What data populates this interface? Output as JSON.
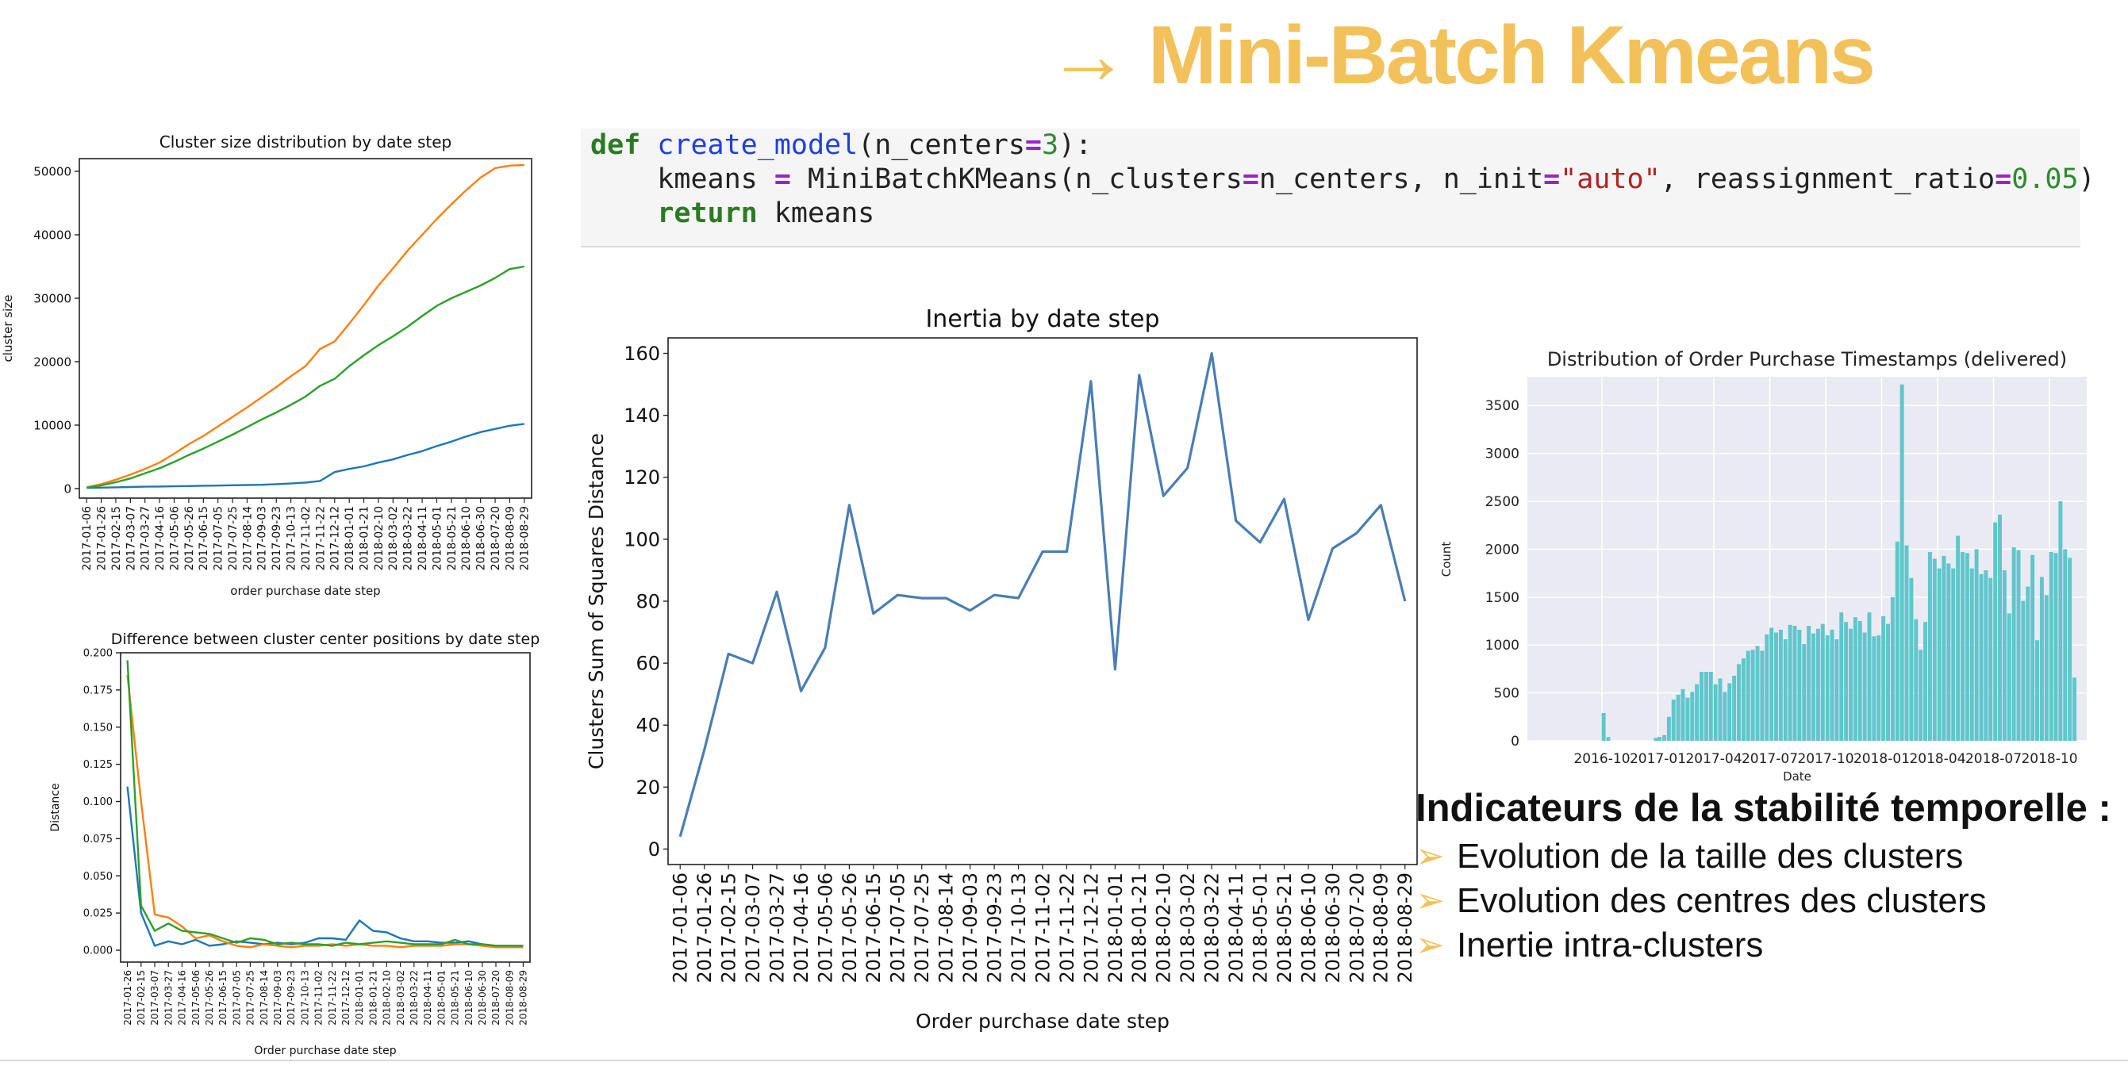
{
  "slide": {
    "title": "→ Mini-Batch Kmeans",
    "code": {
      "line1": {
        "kw": "def",
        "fn": "create_model",
        "a": "(n_centers",
        "op": "=",
        "num": "3",
        "b": "):"
      },
      "line2": {
        "a": "kmeans ",
        "op1": "=",
        "b": " MiniBatchKMeans(n_clusters",
        "op2": "=",
        "c": "n_centers, n_init",
        "op3": "=",
        "str": "\"auto\"",
        "d": ", reassignment_ratio",
        "op4": "=",
        "num": "0.05",
        "e": ")"
      },
      "line3": {
        "kw": "return",
        "a": " kmeans"
      }
    },
    "indicators": {
      "title": "Indicateurs de la stabilité temporelle :",
      "items": [
        "Evolution de la taille des clusters",
        "Evolution des centres des clusters",
        "Inertie intra-clusters"
      ]
    }
  },
  "chart_data": [
    {
      "type": "line",
      "title": "Cluster size distribution by date step",
      "xlabel": "order purchase date step",
      "ylabel": "cluster size",
      "ylim": [
        -1500,
        52000
      ],
      "yticks": [
        0,
        10000,
        20000,
        30000,
        40000,
        50000
      ],
      "x": [
        "2017-01-06",
        "2017-01-26",
        "2017-02-15",
        "2017-03-07",
        "2017-03-27",
        "2017-04-16",
        "2017-05-06",
        "2017-05-26",
        "2017-06-15",
        "2017-07-05",
        "2017-07-25",
        "2017-08-14",
        "2017-09-03",
        "2017-09-23",
        "2017-10-13",
        "2017-11-02",
        "2017-11-22",
        "2017-12-12",
        "2018-01-01",
        "2018-01-21",
        "2018-02-10",
        "2018-03-02",
        "2018-03-22",
        "2018-04-11",
        "2018-05-01",
        "2018-05-21",
        "2018-06-10",
        "2018-06-30",
        "2018-07-20",
        "2018-08-09",
        "2018-08-29"
      ],
      "series": [
        {
          "color": "#1f77b4",
          "values": [
            100,
            150,
            200,
            250,
            300,
            330,
            360,
            400,
            450,
            480,
            520,
            560,
            600,
            700,
            800,
            950,
            1200,
            2600,
            3100,
            3500,
            4100,
            4600,
            5300,
            5900,
            6700,
            7400,
            8200,
            8900,
            9400,
            9900,
            10200
          ]
        },
        {
          "color": "#ff7f0e",
          "values": [
            200,
            700,
            1400,
            2200,
            3100,
            4100,
            5500,
            7000,
            8300,
            9800,
            11300,
            12800,
            14400,
            16000,
            17700,
            19300,
            22000,
            23200,
            26000,
            28900,
            32000,
            34700,
            37500,
            40000,
            42500,
            44800,
            47000,
            49000,
            50500,
            50900,
            51000
          ]
        },
        {
          "color": "#2ca02c",
          "values": [
            150,
            500,
            1000,
            1600,
            2400,
            3200,
            4200,
            5300,
            6300,
            7400,
            8500,
            9700,
            10900,
            12000,
            13200,
            14500,
            16200,
            17300,
            19300,
            21000,
            22600,
            24000,
            25500,
            27200,
            28800,
            30000,
            31000,
            32000,
            33200,
            34600,
            35000
          ]
        }
      ]
    },
    {
      "type": "line",
      "title": "Difference between cluster center positions by date step",
      "xlabel": "Order purchase date step",
      "ylabel": "Distance",
      "ylim": [
        -0.008,
        0.2
      ],
      "yticks": [
        0.0,
        0.025,
        0.05,
        0.075,
        0.1,
        0.125,
        0.15,
        0.175,
        0.2
      ],
      "ytick_labels": [
        "0.000",
        "0.025",
        "0.050",
        "0.075",
        "0.100",
        "0.125",
        "0.150",
        "0.175",
        "0.200"
      ],
      "x": [
        "2017-01-26",
        "2017-02-15",
        "2017-03-07",
        "2017-03-27",
        "2017-04-16",
        "2017-05-06",
        "2017-05-26",
        "2017-06-15",
        "2017-07-05",
        "2017-07-25",
        "2017-08-14",
        "2017-09-03",
        "2017-09-23",
        "2017-10-13",
        "2017-11-02",
        "2017-11-22",
        "2017-12-12",
        "2018-01-01",
        "2018-01-21",
        "2018-02-10",
        "2018-03-02",
        "2018-03-22",
        "2018-04-11",
        "2018-05-01",
        "2018-05-21",
        "2018-06-10",
        "2018-06-30",
        "2018-07-20",
        "2018-08-09",
        "2018-08-29"
      ],
      "series": [
        {
          "color": "#1f77b4",
          "values": [
            0.11,
            0.025,
            0.003,
            0.006,
            0.004,
            0.007,
            0.003,
            0.004,
            0.006,
            0.005,
            0.004,
            0.005,
            0.004,
            0.005,
            0.008,
            0.008,
            0.007,
            0.02,
            0.013,
            0.012,
            0.008,
            0.006,
            0.006,
            0.005,
            0.005,
            0.006,
            0.004,
            0.003,
            0.003,
            0.003
          ]
        },
        {
          "color": "#ff7f0e",
          "values": [
            0.185,
            0.1,
            0.024,
            0.022,
            0.016,
            0.008,
            0.01,
            0.006,
            0.003,
            0.002,
            0.004,
            0.003,
            0.002,
            0.003,
            0.003,
            0.004,
            0.003,
            0.004,
            0.003,
            0.003,
            0.002,
            0.003,
            0.003,
            0.003,
            0.004,
            0.004,
            0.003,
            0.002,
            0.002,
            0.002
          ]
        },
        {
          "color": "#2ca02c",
          "values": [
            0.195,
            0.03,
            0.013,
            0.018,
            0.013,
            0.012,
            0.011,
            0.008,
            0.005,
            0.008,
            0.007,
            0.004,
            0.005,
            0.004,
            0.004,
            0.003,
            0.005,
            0.004,
            0.005,
            0.006,
            0.005,
            0.004,
            0.004,
            0.004,
            0.007,
            0.004,
            0.004,
            0.003,
            0.003,
            0.003
          ]
        }
      ]
    },
    {
      "type": "line",
      "title": "Inertia by date step",
      "xlabel": "Order purchase date step",
      "ylabel": "Clusters Sum of Squares Distance",
      "ylim": [
        -5,
        165
      ],
      "yticks": [
        0,
        20,
        40,
        60,
        80,
        100,
        120,
        140,
        160
      ],
      "x": [
        "2017-01-06",
        "2017-01-26",
        "2017-02-15",
        "2017-03-07",
        "2017-03-27",
        "2017-04-16",
        "2017-05-06",
        "2017-05-26",
        "2017-06-15",
        "2017-07-05",
        "2017-07-25",
        "2017-08-14",
        "2017-09-03",
        "2017-09-23",
        "2017-10-13",
        "2017-11-02",
        "2017-11-22",
        "2017-12-12",
        "2018-01-01",
        "2018-01-21",
        "2018-02-10",
        "2018-03-02",
        "2018-03-22",
        "2018-04-11",
        "2018-05-01",
        "2018-05-21",
        "2018-06-10",
        "2018-06-30",
        "2018-07-20",
        "2018-08-09",
        "2018-08-29"
      ],
      "series": [
        {
          "color": "#4a7eb3",
          "values": [
            4,
            32,
            63,
            60,
            83,
            51,
            65,
            111,
            76,
            82,
            81,
            81,
            77,
            82,
            81,
            96,
            96,
            151,
            58,
            153,
            114,
            123,
            160,
            106,
            99,
            113,
            74,
            97,
            102,
            111,
            80
          ]
        }
      ]
    },
    {
      "type": "bar",
      "title": "Distribution of Order Purchase Timestamps (delivered)",
      "xlabel": "Date",
      "ylabel": "Count",
      "ylim": [
        0,
        3800
      ],
      "yticks": [
        0,
        500,
        1000,
        1500,
        2000,
        2500,
        3000,
        3500
      ],
      "xlim": [
        -2,
        28
      ],
      "x_unit": "months since 2016-08",
      "xtick_positions": [
        2,
        5,
        8,
        11,
        14,
        17,
        20,
        23,
        26
      ],
      "xtick_labels": [
        "2016-10",
        "2017-01",
        "2017-04",
        "2017-07",
        "2017-10",
        "2018-01",
        "2018-04",
        "2018-07",
        "2018-10"
      ],
      "bar_color": "#5fc6cc",
      "bar_width_months": 0.23,
      "values": [
        [
          2.1,
          290
        ],
        [
          2.35,
          40
        ],
        [
          4.9,
          30
        ],
        [
          5.1,
          40
        ],
        [
          5.35,
          60
        ],
        [
          5.6,
          250
        ],
        [
          5.85,
          430
        ],
        [
          6.1,
          480
        ],
        [
          6.35,
          540
        ],
        [
          6.6,
          450
        ],
        [
          6.85,
          510
        ],
        [
          7.1,
          590
        ],
        [
          7.35,
          720
        ],
        [
          7.6,
          720
        ],
        [
          7.85,
          720
        ],
        [
          8.1,
          590
        ],
        [
          8.35,
          650
        ],
        [
          8.6,
          510
        ],
        [
          8.85,
          600
        ],
        [
          9.1,
          680
        ],
        [
          9.35,
          800
        ],
        [
          9.6,
          860
        ],
        [
          9.85,
          940
        ],
        [
          10.1,
          950
        ],
        [
          10.35,
          990
        ],
        [
          10.6,
          940
        ],
        [
          10.85,
          1110
        ],
        [
          11.1,
          1180
        ],
        [
          11.35,
          1130
        ],
        [
          11.6,
          1160
        ],
        [
          11.85,
          1060
        ],
        [
          12.1,
          1210
        ],
        [
          12.35,
          1200
        ],
        [
          12.6,
          1160
        ],
        [
          12.85,
          1010
        ],
        [
          13.1,
          1200
        ],
        [
          13.35,
          1120
        ],
        [
          13.6,
          1170
        ],
        [
          13.85,
          1220
        ],
        [
          14.1,
          1100
        ],
        [
          14.35,
          1160
        ],
        [
          14.6,
          1060
        ],
        [
          14.85,
          1340
        ],
        [
          15.1,
          1240
        ],
        [
          15.35,
          1170
        ],
        [
          15.6,
          1290
        ],
        [
          15.85,
          1250
        ],
        [
          16.1,
          1130
        ],
        [
          16.35,
          1340
        ],
        [
          16.6,
          1090
        ],
        [
          16.85,
          1100
        ],
        [
          17.1,
          1300
        ],
        [
          17.35,
          1220
        ],
        [
          17.6,
          1500
        ],
        [
          17.85,
          2080
        ],
        [
          18.1,
          3720
        ],
        [
          18.35,
          2040
        ],
        [
          18.6,
          1700
        ],
        [
          18.85,
          1270
        ],
        [
          19.1,
          950
        ],
        [
          19.35,
          1240
        ],
        [
          19.6,
          1970
        ],
        [
          19.85,
          1900
        ],
        [
          20.1,
          1800
        ],
        [
          20.35,
          1930
        ],
        [
          20.6,
          1850
        ],
        [
          20.85,
          1800
        ],
        [
          21.1,
          2140
        ],
        [
          21.35,
          1970
        ],
        [
          21.6,
          1960
        ],
        [
          21.85,
          1800
        ],
        [
          22.1,
          2000
        ],
        [
          22.35,
          1740
        ],
        [
          22.6,
          1780
        ],
        [
          22.85,
          1700
        ],
        [
          23.1,
          2280
        ],
        [
          23.35,
          2360
        ],
        [
          23.6,
          1780
        ],
        [
          23.85,
          1330
        ],
        [
          24.1,
          2020
        ],
        [
          24.35,
          1990
        ],
        [
          24.6,
          1460
        ],
        [
          24.85,
          1610
        ],
        [
          25.1,
          1940
        ],
        [
          25.35,
          1050
        ],
        [
          25.6,
          1710
        ],
        [
          25.85,
          1520
        ],
        [
          26.1,
          1970
        ],
        [
          26.35,
          1960
        ],
        [
          26.6,
          2500
        ],
        [
          26.85,
          2000
        ],
        [
          27.1,
          1910
        ],
        [
          27.35,
          660
        ]
      ]
    }
  ]
}
